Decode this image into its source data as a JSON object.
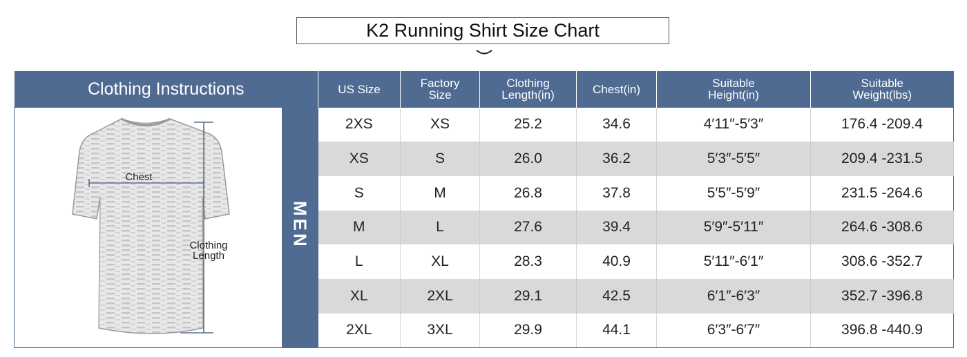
{
  "title": "K2 Running Shirt Size Chart",
  "icons": {
    "title_decoration": "chevron-down-icon",
    "garment": "t-shirt-icon"
  },
  "colors": {
    "header_bg": "#4f6b92",
    "header_text": "#ffffff",
    "stripe_row_bg": "#d9d9d9",
    "border": "#4f6b92"
  },
  "section_title": "Clothing Instructions",
  "gender_label": "MEN",
  "illustration": {
    "chest_label": "Chest",
    "length_label_line1": "Clothing",
    "length_label_line2": "Length"
  },
  "columns": [
    {
      "label_line1": "US Size",
      "label_line2": ""
    },
    {
      "label_line1": "Factory",
      "label_line2": "Size"
    },
    {
      "label_line1": "Clothing",
      "label_line2": "Length(in)"
    },
    {
      "label_line1": "Chest(in)",
      "label_line2": ""
    },
    {
      "label_line1": "Suitable",
      "label_line2": "Height(in)"
    },
    {
      "label_line1": "Suitable",
      "label_line2": "Weight(lbs)"
    }
  ],
  "rows": [
    {
      "us_size": "2XS",
      "factory_size": "XS",
      "length": "25.2",
      "chest": "34.6",
      "height": "4′11″-5′3″",
      "weight": "176.4 -209.4"
    },
    {
      "us_size": "XS",
      "factory_size": "S",
      "length": "26.0",
      "chest": "36.2",
      "height": "5′3″-5′5″",
      "weight": "209.4 -231.5"
    },
    {
      "us_size": "S",
      "factory_size": "M",
      "length": "26.8",
      "chest": "37.8",
      "height": "5′5″-5′9″",
      "weight": "231.5 -264.6"
    },
    {
      "us_size": "M",
      "factory_size": "L",
      "length": "27.6",
      "chest": "39.4",
      "height": "5′9″-5′11″",
      "weight": "264.6 -308.6"
    },
    {
      "us_size": "L",
      "factory_size": "XL",
      "length": "28.3",
      "chest": "40.9",
      "height": "5′11″-6′1″",
      "weight": "308.6 -352.7"
    },
    {
      "us_size": "XL",
      "factory_size": "2XL",
      "length": "29.1",
      "chest": "42.5",
      "height": "6′1″-6′3″",
      "weight": "352.7 -396.8"
    },
    {
      "us_size": "2XL",
      "factory_size": "3XL",
      "length": "29.9",
      "chest": "44.1",
      "height": "6′3″-6′7″",
      "weight": "396.8 -440.9"
    }
  ]
}
